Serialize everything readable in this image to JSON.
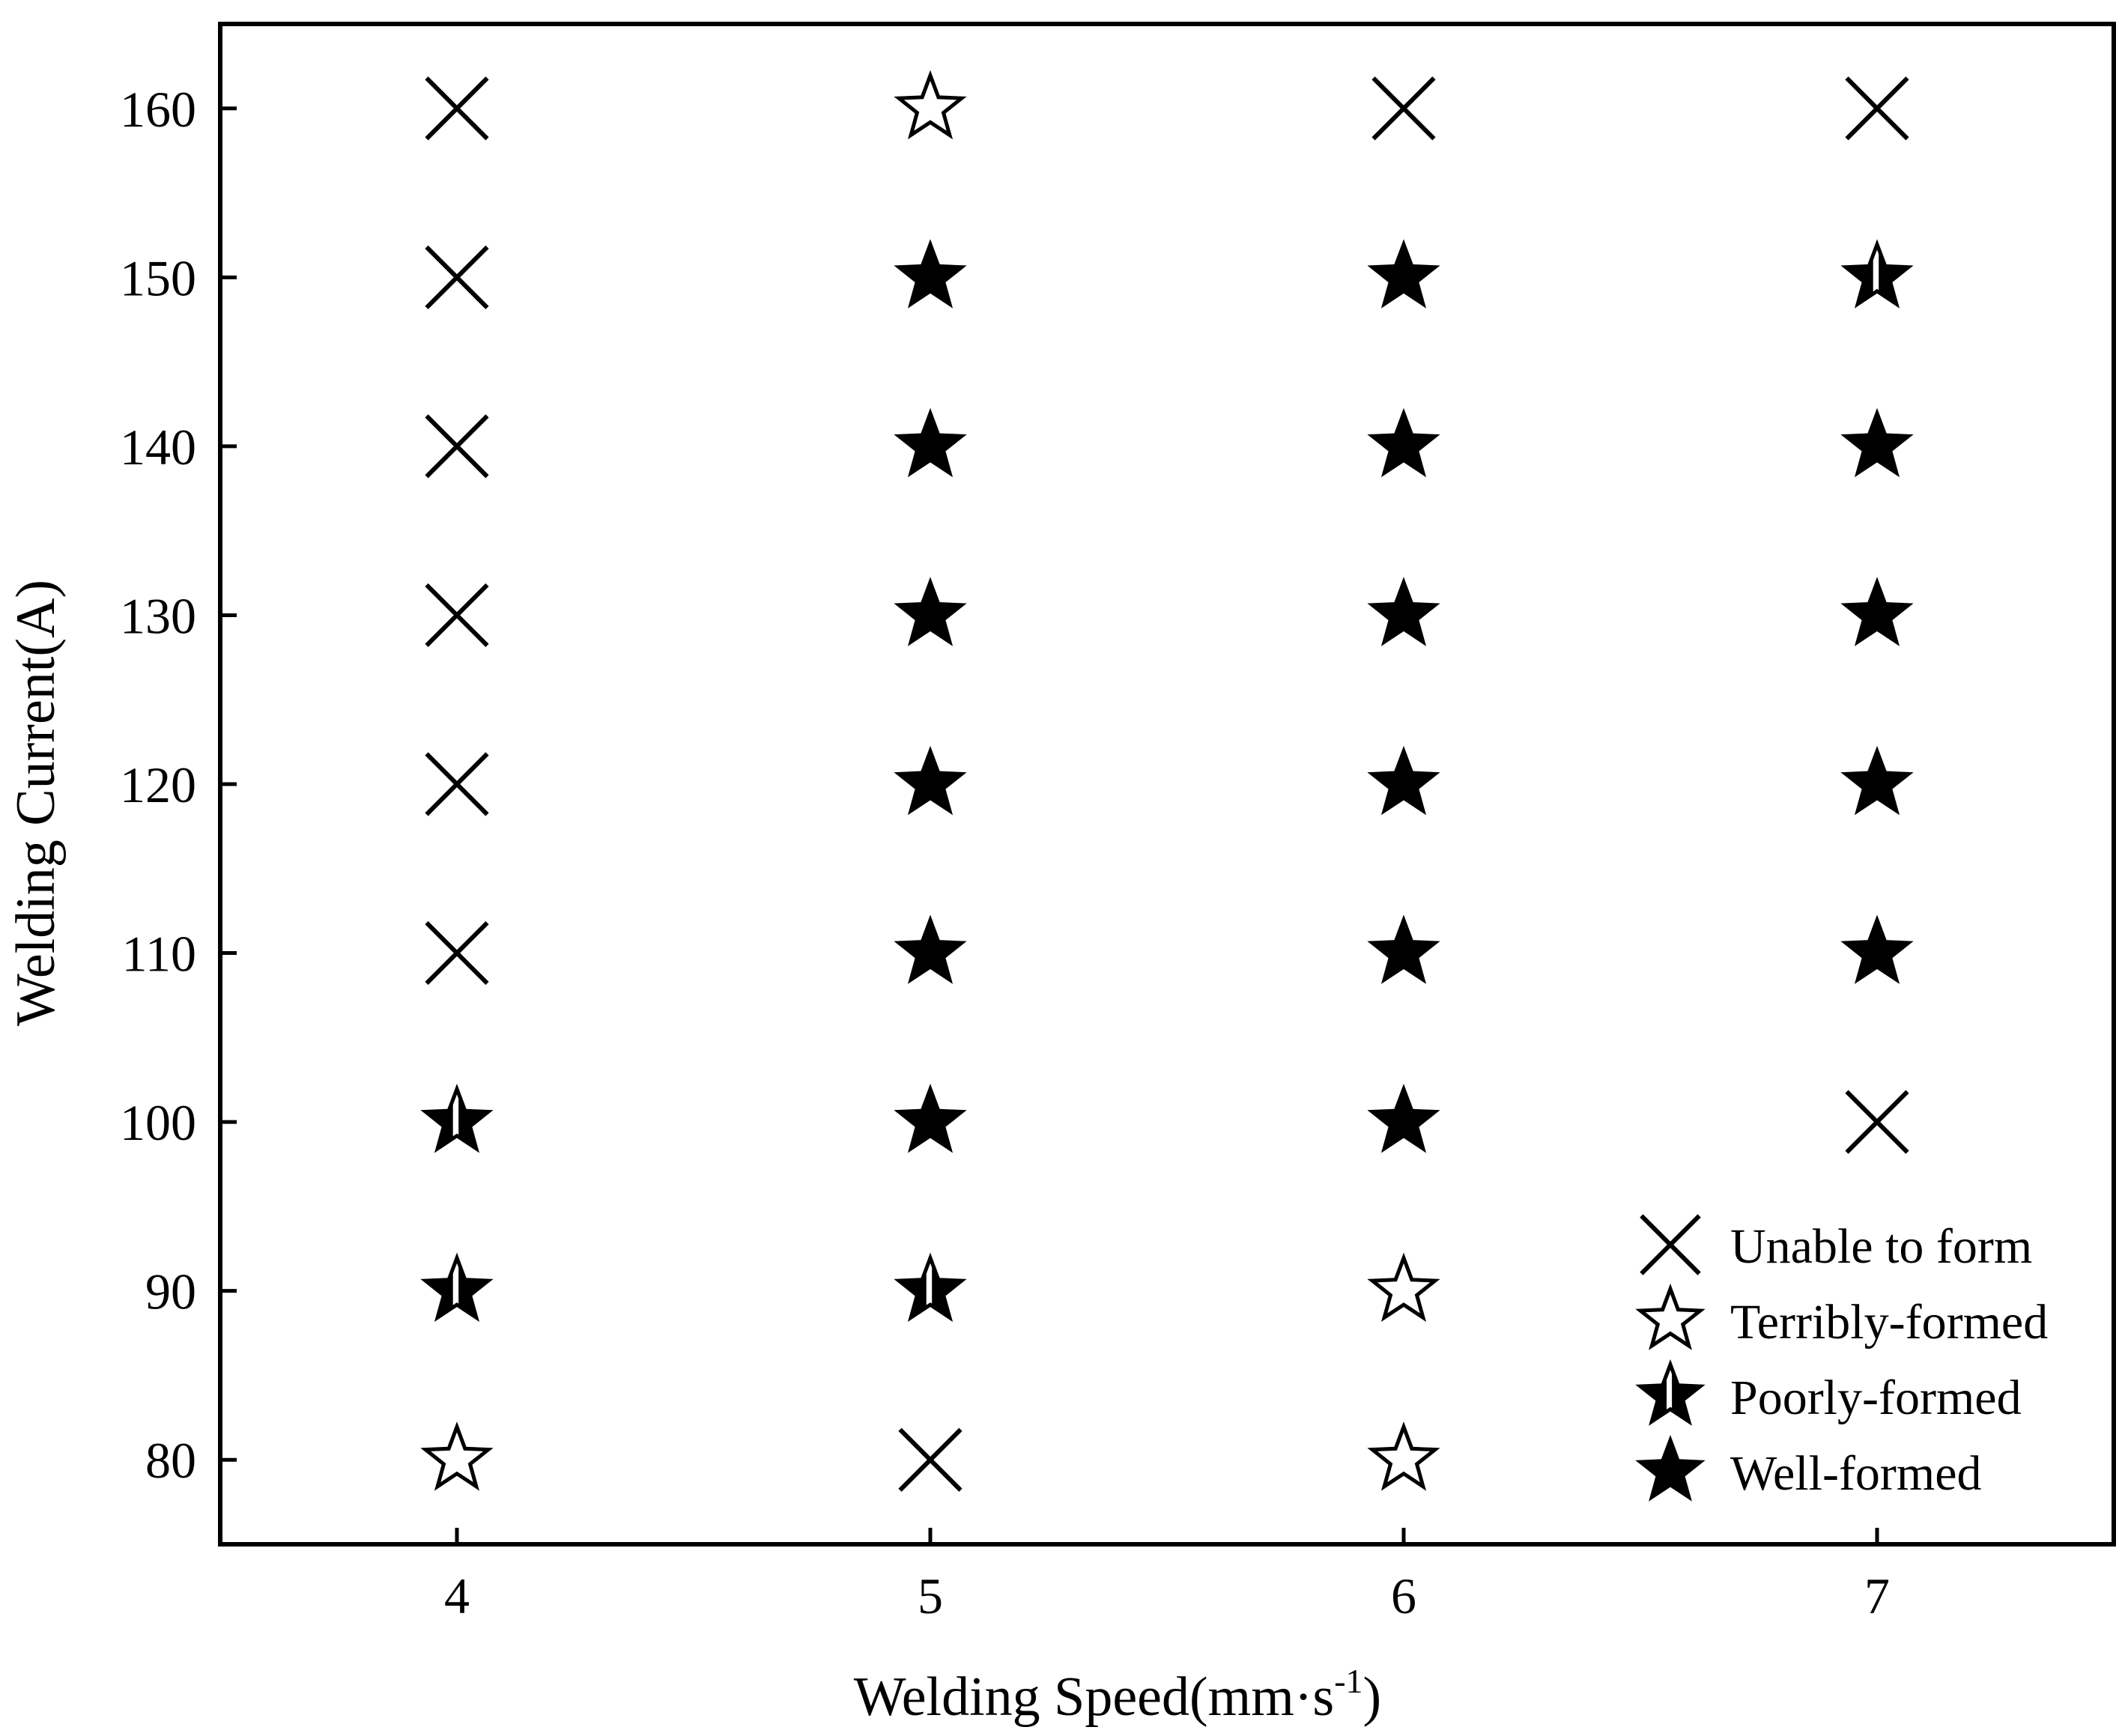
{
  "chart_data": {
    "type": "scatter",
    "xlabel": "Welding Speed(mm·s",
    "xlabel_sup": "-1",
    "xlabel_close": ")",
    "ylabel": "Welding Current(A)",
    "xlim": [
      3.5,
      7.5
    ],
    "ylim": [
      75,
      165
    ],
    "x_ticks": [
      4,
      5,
      6,
      7
    ],
    "y_ticks": [
      80,
      90,
      100,
      110,
      120,
      130,
      140,
      150,
      160
    ],
    "x_tick_labels": [
      "4",
      "5",
      "6",
      "7"
    ],
    "y_tick_labels": [
      "80",
      "90",
      "100",
      "110",
      "120",
      "130",
      "140",
      "150",
      "160"
    ],
    "grid": false,
    "legend_position": "bottom-right",
    "legend": [
      {
        "key": "unable",
        "label": "Unable to form",
        "marker": "cross"
      },
      {
        "key": "terribly",
        "label": "Terribly-formed",
        "marker": "star-open"
      },
      {
        "key": "poorly",
        "label": "Poorly-formed",
        "marker": "star-half"
      },
      {
        "key": "well",
        "label": "Well-formed",
        "marker": "star-filled"
      }
    ],
    "points": [
      {
        "x": 4,
        "y": 80,
        "class": "terribly"
      },
      {
        "x": 4,
        "y": 90,
        "class": "poorly"
      },
      {
        "x": 4,
        "y": 100,
        "class": "poorly"
      },
      {
        "x": 4,
        "y": 110,
        "class": "unable"
      },
      {
        "x": 4,
        "y": 120,
        "class": "unable"
      },
      {
        "x": 4,
        "y": 130,
        "class": "unable"
      },
      {
        "x": 4,
        "y": 140,
        "class": "unable"
      },
      {
        "x": 4,
        "y": 150,
        "class": "unable"
      },
      {
        "x": 4,
        "y": 160,
        "class": "unable"
      },
      {
        "x": 5,
        "y": 80,
        "class": "unable"
      },
      {
        "x": 5,
        "y": 90,
        "class": "poorly"
      },
      {
        "x": 5,
        "y": 100,
        "class": "well"
      },
      {
        "x": 5,
        "y": 110,
        "class": "well"
      },
      {
        "x": 5,
        "y": 120,
        "class": "well"
      },
      {
        "x": 5,
        "y": 130,
        "class": "well"
      },
      {
        "x": 5,
        "y": 140,
        "class": "well"
      },
      {
        "x": 5,
        "y": 150,
        "class": "well"
      },
      {
        "x": 5,
        "y": 160,
        "class": "terribly"
      },
      {
        "x": 6,
        "y": 80,
        "class": "terribly"
      },
      {
        "x": 6,
        "y": 90,
        "class": "terribly"
      },
      {
        "x": 6,
        "y": 100,
        "class": "well"
      },
      {
        "x": 6,
        "y": 110,
        "class": "well"
      },
      {
        "x": 6,
        "y": 120,
        "class": "well"
      },
      {
        "x": 6,
        "y": 130,
        "class": "well"
      },
      {
        "x": 6,
        "y": 140,
        "class": "well"
      },
      {
        "x": 6,
        "y": 150,
        "class": "well"
      },
      {
        "x": 6,
        "y": 160,
        "class": "unable"
      },
      {
        "x": 7,
        "y": 100,
        "class": "unable"
      },
      {
        "x": 7,
        "y": 110,
        "class": "well"
      },
      {
        "x": 7,
        "y": 120,
        "class": "well"
      },
      {
        "x": 7,
        "y": 130,
        "class": "well"
      },
      {
        "x": 7,
        "y": 140,
        "class": "well"
      },
      {
        "x": 7,
        "y": 150,
        "class": "poorly"
      },
      {
        "x": 7,
        "y": 160,
        "class": "unable"
      }
    ],
    "colors": {
      "marker": "#000000",
      "background": "#ffffff"
    }
  }
}
